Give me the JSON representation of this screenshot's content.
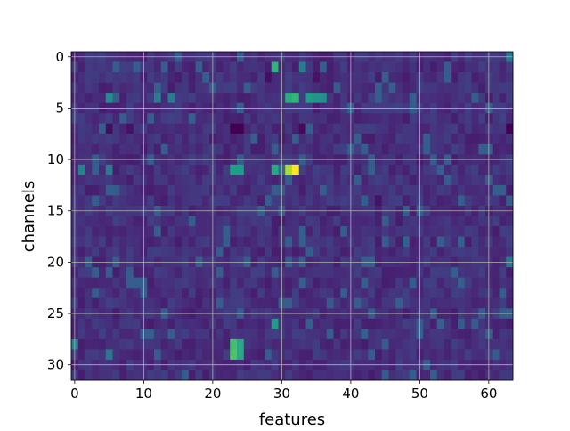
{
  "chart_data": {
    "type": "heatmap",
    "title": "",
    "xlabel": "features",
    "ylabel": "channels",
    "n_cols": 64,
    "n_rows": 32,
    "xlim": [
      -0.5,
      63.5
    ],
    "ylim": [
      31.5,
      -0.5
    ],
    "x_ticks": [
      0,
      10,
      20,
      30,
      40,
      50,
      60
    ],
    "y_ticks": [
      0,
      5,
      10,
      15,
      20,
      25,
      30
    ],
    "grid": true,
    "colormap": "viridis",
    "colormap_stops": [
      "#440154",
      "#482878",
      "#3e4989",
      "#31688e",
      "#26828e",
      "#1f9e89",
      "#35b779",
      "#6ece58",
      "#b5de2b",
      "#fde725"
    ],
    "value_range": [
      0,
      1
    ],
    "background_level": 0.14,
    "notable_cells": [
      {
        "x": 32,
        "y": 11,
        "value": 1.0
      },
      {
        "x": 31,
        "y": 11,
        "value": 0.88
      },
      {
        "x": 23,
        "y": 28,
        "value": 0.7
      },
      {
        "x": 24,
        "y": 28,
        "value": 0.6
      },
      {
        "x": 23,
        "y": 29,
        "value": 0.72
      },
      {
        "x": 24,
        "y": 29,
        "value": 0.6
      },
      {
        "x": 31,
        "y": 4,
        "value": 0.62
      },
      {
        "x": 32,
        "y": 4,
        "value": 0.66
      },
      {
        "x": 34,
        "y": 4,
        "value": 0.55
      },
      {
        "x": 35,
        "y": 4,
        "value": 0.52
      },
      {
        "x": 36,
        "y": 4,
        "value": 0.5
      },
      {
        "x": 29,
        "y": 1,
        "value": 0.65
      },
      {
        "x": 29,
        "y": 11,
        "value": 0.6
      },
      {
        "x": 23,
        "y": 11,
        "value": 0.56
      },
      {
        "x": 24,
        "y": 11,
        "value": 0.55
      },
      {
        "x": 29,
        "y": 26,
        "value": 0.55
      },
      {
        "x": 5,
        "y": 4,
        "value": 0.48
      },
      {
        "x": 12,
        "y": 4,
        "value": 0.42
      },
      {
        "x": 14,
        "y": 4,
        "value": 0.42
      },
      {
        "x": 1,
        "y": 11,
        "value": 0.45
      },
      {
        "x": 5,
        "y": 11,
        "value": 0.42
      },
      {
        "x": 0,
        "y": 28,
        "value": 0.45
      },
      {
        "x": 5,
        "y": 29,
        "value": 0.4
      },
      {
        "x": 63,
        "y": 20,
        "value": 0.4
      },
      {
        "x": 63,
        "y": 0,
        "value": 0.4
      },
      {
        "x": 33,
        "y": 1,
        "value": 0.42
      },
      {
        "x": 30,
        "y": 11,
        "value": 0.35
      }
    ],
    "dark_cells": [
      {
        "x": 23,
        "y": 7,
        "value": 0.0
      },
      {
        "x": 24,
        "y": 7,
        "value": 0.0
      },
      {
        "x": 33,
        "y": 7,
        "value": 0.02
      },
      {
        "x": 63,
        "y": 7,
        "value": 0.0
      },
      {
        "x": 5,
        "y": 7,
        "value": 0.04
      },
      {
        "x": 8,
        "y": 7,
        "value": 0.05
      },
      {
        "x": 28,
        "y": 2,
        "value": 0.04
      },
      {
        "x": 44,
        "y": 14,
        "value": 0.05
      },
      {
        "x": 35,
        "y": 2,
        "value": 0.05
      }
    ]
  }
}
